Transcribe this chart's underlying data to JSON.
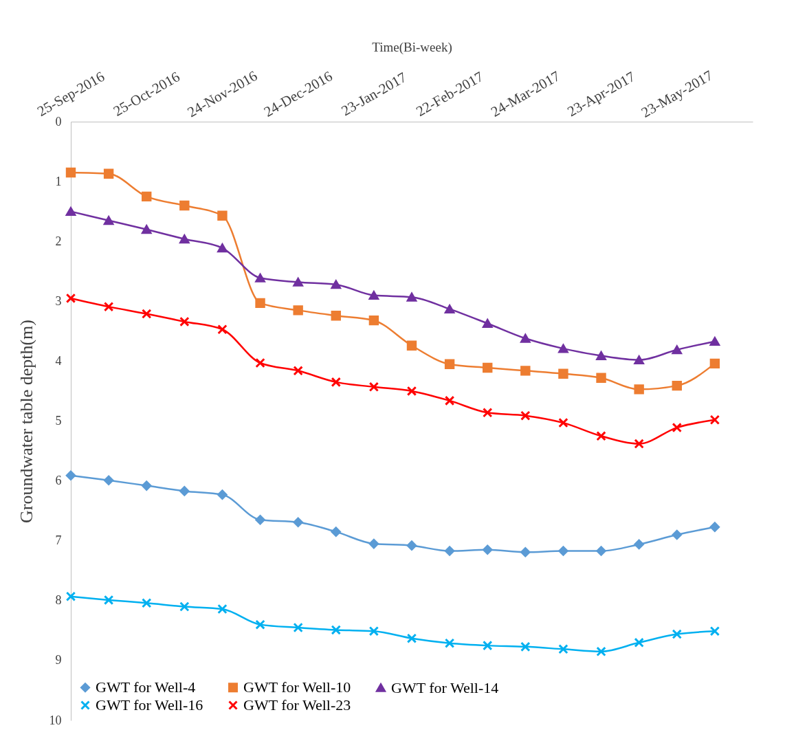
{
  "chart_data": {
    "type": "line",
    "xlabel": "Time(Bi-week)",
    "ylabel": "Groundwater table depth(m)",
    "x": [
      "2016-09-25",
      "2016-10-10",
      "2016-10-25",
      "2016-11-09",
      "2016-11-24",
      "2016-12-09",
      "2016-12-24",
      "2017-01-08",
      "2017-01-23",
      "2017-02-07",
      "2017-02-22",
      "2017-03-09",
      "2017-03-24",
      "2017-04-08",
      "2017-04-23",
      "2017-05-08",
      "2017-05-23",
      "2017-06-07"
    ],
    "xlim": [
      "2016-09-25",
      "2017-06-22"
    ],
    "xticks": [
      {
        "value": "2016-09-25",
        "label": "25-Sep-2016"
      },
      {
        "value": "2016-10-25",
        "label": "25-Oct-2016"
      },
      {
        "value": "2016-11-24",
        "label": "24-Nov-2016"
      },
      {
        "value": "2016-12-24",
        "label": "24-Dec-2016"
      },
      {
        "value": "2017-01-23",
        "label": "23-Jan-2017"
      },
      {
        "value": "2017-02-22",
        "label": "22-Feb-2017"
      },
      {
        "value": "2017-03-24",
        "label": "24-Mar-2017"
      },
      {
        "value": "2017-04-23",
        "label": "23-Apr-2017"
      },
      {
        "value": "2017-05-23",
        "label": "23-May-2017"
      }
    ],
    "ylim": [
      10,
      0
    ],
    "yticks": [
      0,
      1,
      2,
      3,
      4,
      5,
      6,
      7,
      8,
      9,
      10
    ],
    "grid": false,
    "legend": "bottom",
    "series": [
      {
        "name": "GWT for Well-4",
        "color": "#5b9bd5",
        "marker": "diamond",
        "values": [
          5.91,
          5.99,
          6.08,
          6.17,
          6.23,
          6.65,
          6.69,
          6.85,
          7.05,
          7.08,
          7.17,
          7.15,
          7.19,
          7.17,
          7.17,
          7.06,
          6.9,
          6.77
        ]
      },
      {
        "name": "GWT for Well-10",
        "color": "#ed7d31",
        "marker": "square",
        "values": [
          0.85,
          0.87,
          1.25,
          1.4,
          1.57,
          3.03,
          3.15,
          3.24,
          3.32,
          3.74,
          4.05,
          4.11,
          4.16,
          4.21,
          4.28,
          4.47,
          4.41,
          4.04
        ]
      },
      {
        "name": "GWT for Well-14",
        "color": "#7030a0",
        "marker": "triangle",
        "values": [
          1.5,
          1.65,
          1.8,
          1.96,
          2.11,
          2.61,
          2.68,
          2.72,
          2.9,
          2.93,
          3.13,
          3.37,
          3.62,
          3.79,
          3.91,
          3.98,
          3.81,
          3.67
        ]
      },
      {
        "name": "GWT for Well-16",
        "color": "#00b0f0",
        "marker": "cross",
        "values": [
          7.93,
          7.99,
          8.04,
          8.1,
          8.14,
          8.4,
          8.45,
          8.49,
          8.51,
          8.63,
          8.71,
          8.75,
          8.77,
          8.81,
          8.85,
          8.7,
          8.56,
          8.51
        ]
      },
      {
        "name": "GWT for Well-23",
        "color": "#ff0000",
        "marker": "cross",
        "values": [
          2.95,
          3.09,
          3.21,
          3.34,
          3.47,
          4.03,
          4.16,
          4.35,
          4.43,
          4.5,
          4.66,
          4.86,
          4.91,
          5.03,
          5.25,
          5.38,
          5.11,
          4.98
        ]
      }
    ]
  }
}
